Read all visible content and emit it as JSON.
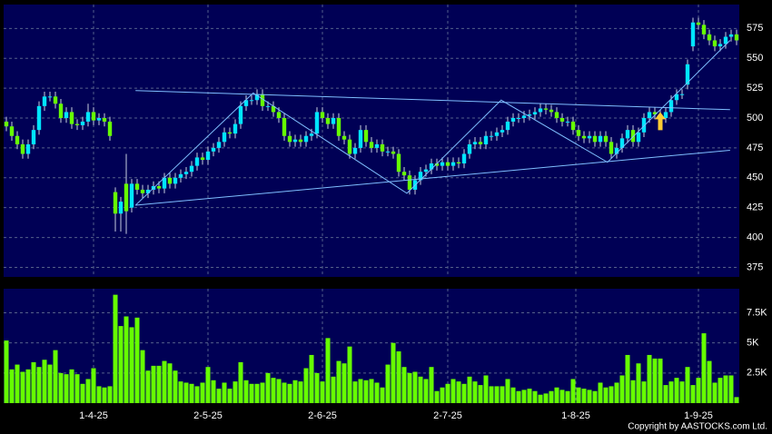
{
  "chart_data": {
    "type": "candlestick",
    "copyright": "Copyright by AASTOCKS.com Ltd.",
    "up_color": "#00e5ff",
    "down_color": "#66ff00",
    "volume_color": "#66ff00",
    "trendline_color": "#7fbfff",
    "grid": true,
    "open": [
      497,
      493,
      485,
      478,
      470,
      478,
      490,
      510,
      518,
      518,
      512,
      500,
      505,
      495,
      494,
      497,
      505,
      498,
      500,
      497,
      438,
      420,
      445,
      425,
      445,
      440,
      437,
      440,
      443,
      441,
      450,
      445,
      450,
      453,
      455,
      460,
      467,
      465,
      472,
      475,
      480,
      488,
      487,
      495,
      510,
      515,
      515,
      520,
      510,
      510,
      505,
      500,
      485,
      480,
      482,
      480,
      485,
      487,
      505,
      500,
      495,
      500,
      485,
      482,
      470,
      475,
      490,
      480,
      475,
      478,
      472,
      472,
      470,
      455,
      452,
      440,
      448,
      455,
      457,
      462,
      460,
      463,
      460,
      463,
      462,
      470,
      478,
      480,
      478,
      485,
      485,
      488,
      490,
      497,
      500,
      500,
      502,
      503,
      505,
      508,
      507,
      505,
      500,
      497,
      497,
      490,
      485,
      483,
      485,
      480,
      485,
      480,
      470,
      475,
      483,
      490,
      480,
      488,
      500,
      505,
      503,
      500,
      505,
      515,
      520,
      528,
      560,
      580,
      578,
      570,
      565,
      560,
      562,
      568,
      570
    ],
    "high": [
      501,
      497,
      489,
      482,
      482,
      494,
      514,
      522,
      522,
      522,
      516,
      509,
      509,
      499,
      501,
      512,
      509,
      504,
      504,
      501,
      442,
      434,
      470,
      449,
      449,
      444,
      444,
      447,
      447,
      454,
      454,
      454,
      457,
      459,
      464,
      471,
      471,
      476,
      479,
      484,
      492,
      492,
      499,
      514,
      519,
      519,
      524,
      524,
      514,
      514,
      509,
      504,
      489,
      486,
      486,
      489,
      491,
      509,
      509,
      504,
      504,
      504,
      489,
      486,
      479,
      494,
      494,
      484,
      482,
      482,
      476,
      476,
      474,
      459,
      456,
      452,
      459,
      461,
      466,
      466,
      467,
      467,
      467,
      467,
      474,
      482,
      484,
      484,
      489,
      489,
      492,
      494,
      501,
      504,
      504,
      506,
      507,
      509,
      512,
      512,
      511,
      509,
      504,
      501,
      501,
      494,
      489,
      489,
      489,
      489,
      489,
      484,
      479,
      487,
      494,
      494,
      492,
      504,
      509,
      509,
      507,
      509,
      519,
      524,
      524,
      549,
      584,
      584,
      582,
      574,
      569,
      566,
      572,
      574,
      574
    ],
    "low": [
      489,
      481,
      474,
      466,
      466,
      474,
      486,
      506,
      514,
      508,
      496,
      496,
      491,
      490,
      490,
      493,
      494,
      494,
      493,
      481,
      405,
      405,
      403,
      421,
      436,
      433,
      433,
      436,
      437,
      437,
      441,
      441,
      446,
      449,
      451,
      456,
      461,
      461,
      468,
      471,
      476,
      483,
      483,
      491,
      506,
      511,
      511,
      506,
      506,
      501,
      496,
      481,
      476,
      476,
      476,
      476,
      481,
      483,
      496,
      491,
      491,
      481,
      478,
      466,
      466,
      471,
      476,
      471,
      471,
      468,
      468,
      466,
      451,
      448,
      436,
      436,
      444,
      451,
      453,
      456,
      456,
      456,
      456,
      458,
      458,
      466,
      474,
      474,
      474,
      481,
      481,
      484,
      486,
      493,
      496,
      496,
      498,
      499,
      501,
      503,
      501,
      496,
      493,
      493,
      486,
      481,
      479,
      479,
      476,
      476,
      476,
      466,
      466,
      471,
      479,
      476,
      476,
      484,
      496,
      499,
      496,
      496,
      501,
      511,
      516,
      524,
      556,
      574,
      566,
      561,
      556,
      556,
      558,
      564,
      561
    ],
    "close": [
      493,
      485,
      478,
      470,
      478,
      490,
      510,
      518,
      518,
      512,
      500,
      505,
      495,
      494,
      497,
      505,
      498,
      500,
      497,
      485,
      420,
      430,
      422,
      445,
      440,
      437,
      440,
      443,
      441,
      450,
      445,
      450,
      453,
      455,
      460,
      467,
      465,
      472,
      475,
      480,
      488,
      487,
      495,
      510,
      515,
      515,
      520,
      510,
      510,
      505,
      500,
      485,
      480,
      482,
      480,
      485,
      487,
      505,
      500,
      495,
      500,
      485,
      482,
      470,
      475,
      490,
      480,
      475,
      478,
      472,
      472,
      470,
      455,
      452,
      440,
      448,
      455,
      457,
      462,
      460,
      463,
      460,
      463,
      462,
      470,
      478,
      480,
      478,
      485,
      485,
      488,
      490,
      497,
      500,
      500,
      502,
      503,
      505,
      508,
      507,
      505,
      500,
      497,
      497,
      490,
      485,
      483,
      485,
      480,
      485,
      480,
      470,
      475,
      483,
      490,
      480,
      488,
      500,
      505,
      503,
      500,
      505,
      515,
      520,
      520,
      545,
      580,
      578,
      570,
      565,
      560,
      562,
      568,
      570,
      565
    ],
    "volume": [
      5200,
      2800,
      3200,
      2600,
      2800,
      3400,
      3000,
      3600,
      3200,
      4400,
      2500,
      2400,
      2800,
      2400,
      1600,
      2000,
      2900,
      1400,
      1300,
      1400,
      9000,
      6400,
      7200,
      6300,
      7100,
      4400,
      2700,
      3100,
      3100,
      3500,
      3300,
      2700,
      1800,
      1700,
      1600,
      1400,
      1700,
      3000,
      1900,
      1200,
      1700,
      1200,
      1800,
      3400,
      1900,
      1600,
      1600,
      1700,
      2500,
      2100,
      2000,
      1700,
      1600,
      1900,
      1800,
      2900,
      4000,
      2500,
      1800,
      5400,
      2200,
      3500,
      3300,
      4700,
      1800,
      2000,
      1900,
      2000,
      1700,
      1300,
      3200,
      5000,
      4300,
      3000,
      2500,
      2600,
      2200,
      2000,
      3000,
      1000,
      1300,
      1600,
      2000,
      1800,
      1600,
      2200,
      1800,
      1500,
      2300,
      1400,
      1400,
      1400,
      2000,
      1300,
      1000,
      1100,
      1200,
      1000,
      700,
      800,
      1000,
      1300,
      1100,
      1000,
      2000,
      1300,
      1200,
      1100,
      1000,
      1700,
      1300,
      1400,
      1700,
      2300,
      4000,
      1900,
      3300,
      1800,
      4000,
      3700,
      3700,
      1500,
      1800,
      2100,
      1800,
      3000,
      1500,
      2100,
      5800,
      3500,
      1700,
      2100,
      2300,
      2300,
      500
    ],
    "ylim": [
      367,
      595
    ],
    "yticks": [
      375,
      400,
      425,
      450,
      475,
      500,
      525,
      550,
      575
    ],
    "volume_ylim": [
      0,
      9500
    ],
    "volume_yticks": [
      {
        "value": 2500,
        "label": "2.5K"
      },
      {
        "value": 5000,
        "label": "5K"
      },
      {
        "value": 7500,
        "label": "7.5K"
      }
    ],
    "xlim": [
      -0.5,
      134.5
    ],
    "xticks": [
      {
        "value": 16,
        "label": "1-4-25"
      },
      {
        "value": 37,
        "label": "2-5-25"
      },
      {
        "value": 58,
        "label": "2-6-25"
      },
      {
        "value": 81,
        "label": "2-7-25"
      },
      {
        "value": 104.5,
        "label": "1-8-25"
      },
      {
        "value": 127,
        "label": "1-9-25"
      }
    ],
    "trendlines": [
      {
        "points": [
          [
            23.7,
            523
          ],
          [
            132.8,
            507
          ]
        ]
      },
      {
        "points": [
          [
            23.7,
            427
          ],
          [
            132.8,
            473
          ]
        ]
      },
      {
        "points": [
          [
            23.7,
            427
          ],
          [
            45.3,
            521
          ],
          [
            73.5,
            437
          ],
          [
            90.8,
            515
          ],
          [
            110.3,
            463
          ],
          [
            132.8,
            565
          ]
        ]
      }
    ],
    "arrow": {
      "index": 120,
      "value": 505,
      "color": "#ffcc33"
    }
  }
}
